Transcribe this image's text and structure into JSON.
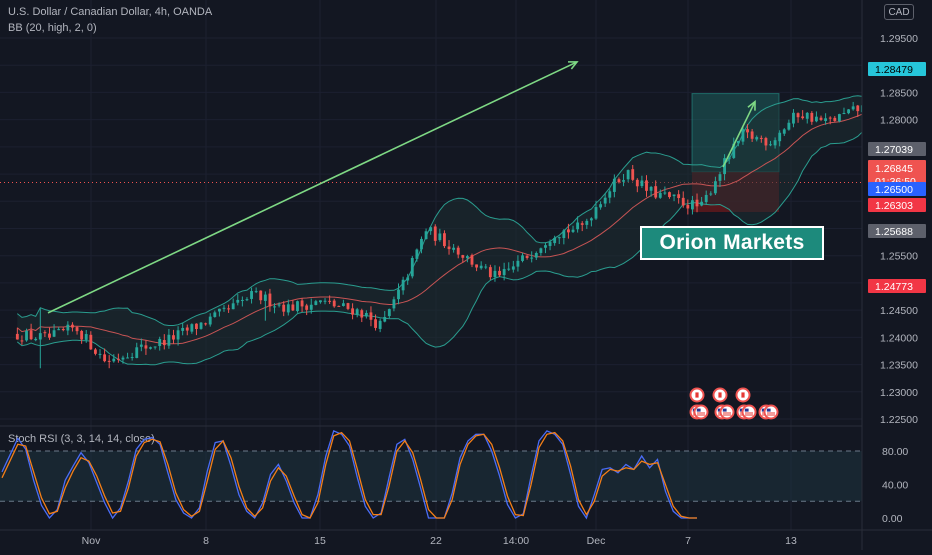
{
  "header": {
    "symbol_line": "U.S. Dollar / Canadian Dollar, 4h, OANDA",
    "indicator_line": "BB (20, high, 2, 0)",
    "currency_button": "CAD"
  },
  "watermark": "Orion Markets",
  "colors": {
    "background": "#131722",
    "bull": "#26a69a",
    "bear": "#ef5350",
    "band_line": "#2a9d8f",
    "band_fill": "#1e2d31",
    "basis": "#c75454",
    "trend_arrow": "#7ed884",
    "k_line": "#4a6cf7",
    "d_line": "#f57f17",
    "current_price_tag": "#ef5350",
    "target_tag": "#26c6da"
  },
  "chart_data": [
    {
      "type": "candlestick",
      "title": "U.S. Dollar / Canadian Dollar, 4h, OANDA",
      "x_tick_labels": [
        "Nov",
        "8",
        "15",
        "22",
        "14:00",
        "Dec",
        "7",
        "13"
      ],
      "y_ticks": [
        "1.22500",
        "1.23000",
        "1.23500",
        "1.24000",
        "1.24500",
        "1.25000",
        "1.25500",
        "1.26000",
        "1.26500",
        "1.27000",
        "1.27500",
        "1.28000",
        "1.28500",
        "1.29000",
        "1.29500"
      ],
      "ylim": [
        1.222,
        1.296
      ],
      "price_tags": [
        {
          "label": "1.28479",
          "value": 1.28479,
          "style": "target"
        },
        {
          "label": "1.27039",
          "value": 1.27039,
          "style": "grey"
        },
        {
          "label": "1.26845",
          "sub": "01:36:50",
          "value": 1.26845,
          "style": "current"
        },
        {
          "label": "1.26500",
          "value": 1.265,
          "style": "position"
        },
        {
          "label": "1.26303",
          "value": 1.26303,
          "style": "stop"
        },
        {
          "label": "1.25688",
          "value": 1.25688,
          "style": "grey"
        },
        {
          "label": "1.24773",
          "value": 1.24773,
          "style": "stop"
        }
      ],
      "position_tool": {
        "entry": 1.2704,
        "target": 1.28479,
        "stop": 1.26303
      },
      "trendline": {
        "from": 1.2445,
        "to": 1.2906
      },
      "target_arrow": {
        "from": 1.2713,
        "to": 1.2833
      },
      "candle_control_points": [
        [
          1.2405,
          0.3
        ],
        [
          1.2398,
          1.4
        ],
        [
          1.2418,
          2.4
        ],
        [
          1.2355,
          3.5
        ],
        [
          1.2378,
          4.6
        ],
        [
          1.2395,
          5.7
        ],
        [
          1.2422,
          6.8
        ],
        [
          1.2445,
          7.7
        ],
        [
          1.2478,
          8.8
        ],
        [
          1.2455,
          10.0
        ],
        [
          1.2465,
          11.2
        ],
        [
          1.2448,
          12.6
        ],
        [
          1.242,
          13.4
        ],
        [
          1.25,
          14.2
        ],
        [
          1.2598,
          15.0
        ],
        [
          1.2565,
          16.0
        ],
        [
          1.2525,
          17.0
        ],
        [
          1.2508,
          17.6
        ],
        [
          1.2548,
          18.6
        ],
        [
          1.2592,
          19.6
        ],
        [
          1.2602,
          20.6
        ],
        [
          1.2655,
          21.3
        ],
        [
          1.2705,
          22.2
        ],
        [
          1.2668,
          23.0
        ],
        [
          1.2652,
          24.0
        ],
        [
          1.2638,
          24.9
        ],
        [
          1.27,
          25.5
        ],
        [
          1.2772,
          26.4
        ],
        [
          1.276,
          27.4
        ],
        [
          1.2812,
          28.4
        ],
        [
          1.2795,
          29.4
        ],
        [
          1.282,
          30.6
        ],
        [
          1.283,
          31.6
        ],
        [
          1.284,
          32.6
        ],
        [
          1.2758,
          33.5
        ],
        [
          1.2684,
          34.0
        ]
      ],
      "x_axis_days": [
        0,
        34.2
      ],
      "candle_count": 205
    },
    {
      "type": "line",
      "title": "Stoch RSI (3, 3, 14, 14, close)",
      "y_ticks": [
        "0.00",
        "40.00",
        "80.00"
      ],
      "ylim": [
        -5,
        113
      ],
      "bands": [
        20,
        80
      ],
      "series": [
        {
          "name": "K",
          "values": [
            55,
            75,
            95,
            82,
            45,
            15,
            0,
            10,
            45,
            62,
            78,
            66,
            42,
            18,
            0,
            12,
            44,
            82,
            94,
            96,
            88,
            54,
            22,
            6,
            0,
            12,
            56,
            90,
            92,
            62,
            28,
            8,
            0,
            18,
            52,
            64,
            44,
            18,
            0,
            0,
            28,
            74,
            104,
            100,
            86,
            48,
            14,
            0,
            6,
            48,
            88,
            94,
            70,
            36,
            0,
            0,
            0,
            30,
            72,
            92,
            100,
            100,
            80,
            50,
            16,
            0,
            5,
            50,
            92,
            104,
            100,
            88,
            52,
            14,
            0,
            28,
            58,
            60,
            54,
            64,
            58,
            74,
            60,
            70,
            32,
            8,
            0,
            0,
            0
          ]
        },
        {
          "name": "D",
          "values": [
            48,
            68,
            88,
            86,
            55,
            24,
            5,
            8,
            36,
            56,
            72,
            68,
            50,
            26,
            6,
            8,
            36,
            74,
            90,
            94,
            91,
            64,
            30,
            10,
            2,
            8,
            44,
            82,
            92,
            72,
            38,
            12,
            2,
            12,
            44,
            60,
            50,
            26,
            4,
            0,
            18,
            64,
            98,
            102,
            92,
            58,
            22,
            4,
            4,
            38,
            80,
            92,
            78,
            46,
            10,
            0,
            0,
            22,
            64,
            88,
            98,
            100,
            88,
            60,
            26,
            4,
            3,
            40,
            84,
            100,
            102,
            92,
            62,
            22,
            4,
            20,
            50,
            58,
            56,
            60,
            58,
            68,
            64,
            66,
            40,
            14,
            2,
            0,
            0
          ]
        }
      ]
    }
  ]
}
